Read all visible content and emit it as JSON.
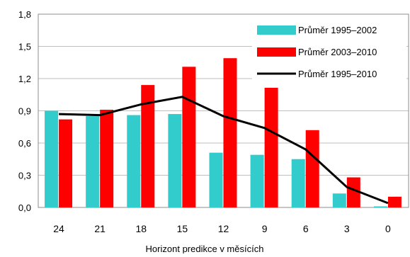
{
  "chart_data": {
    "type": "bar",
    "categories": [
      "24",
      "21",
      "18",
      "15",
      "12",
      "9",
      "6",
      "3",
      "0"
    ],
    "xlabel": "Horizont predikce v měsících",
    "ylabel": "",
    "title": "",
    "ylim": [
      0,
      1.8
    ],
    "yticks": [
      "0,0",
      "0,3",
      "0,6",
      "0,9",
      "1,2",
      "1,5",
      "1,8"
    ],
    "ytick_values": [
      0,
      0.3,
      0.6,
      0.9,
      1.2,
      1.5,
      1.8
    ],
    "grid": "horizontal",
    "legend_position": "top-right",
    "series": [
      {
        "name": "Průměr 1995–2002",
        "kind": "bar",
        "color": "#33CCCC",
        "values": [
          0.9,
          0.85,
          0.86,
          0.87,
          0.51,
          0.49,
          0.45,
          0.13,
          0.01
        ]
      },
      {
        "name": "Průměr 2003–2010",
        "kind": "bar",
        "color": "#FF0000",
        "values": [
          0.82,
          0.91,
          1.14,
          1.31,
          1.39,
          1.12,
          0.72,
          0.28,
          0.1
        ]
      },
      {
        "name": "Průměr 1995–2010",
        "kind": "line",
        "color": "#000000",
        "values": [
          0.87,
          0.86,
          0.96,
          1.03,
          0.85,
          0.74,
          0.54,
          0.19,
          0.04
        ]
      }
    ]
  }
}
